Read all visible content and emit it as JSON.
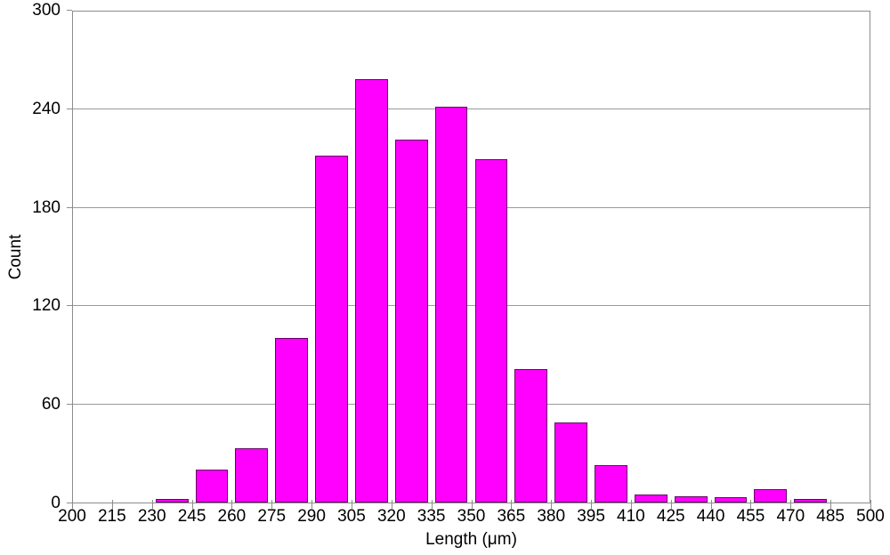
{
  "chart_data": {
    "type": "bar",
    "subtype": "histogram",
    "title": "",
    "xlabel": "Length (μm)",
    "ylabel": "Count",
    "xlim": [
      200,
      500
    ],
    "ylim": [
      0,
      300
    ],
    "x_tick_step": 15,
    "y_tick_step": 60,
    "x_ticks": [
      200,
      215,
      230,
      245,
      260,
      275,
      290,
      305,
      320,
      335,
      350,
      365,
      380,
      395,
      410,
      425,
      440,
      455,
      470,
      485,
      500
    ],
    "y_ticks": [
      0,
      60,
      120,
      180,
      240,
      300
    ],
    "bin_width": 15,
    "bin_starts": [
      200,
      215,
      230,
      245,
      260,
      275,
      290,
      305,
      320,
      335,
      350,
      365,
      380,
      395,
      410,
      425,
      440,
      455,
      470,
      485
    ],
    "values": [
      0,
      0,
      2,
      20,
      33,
      100,
      211,
      258,
      221,
      241,
      209,
      81,
      49,
      23,
      5,
      4,
      3,
      8,
      2,
      0
    ],
    "grid": true,
    "legend": "none"
  },
  "colors": {
    "bar_fill": "#FF00FF",
    "bar_border": "#660066",
    "grid_line": "#9a9a9a",
    "axis_line": "#8c8c8c",
    "text": "#000000",
    "background": "#FFFFFF"
  }
}
